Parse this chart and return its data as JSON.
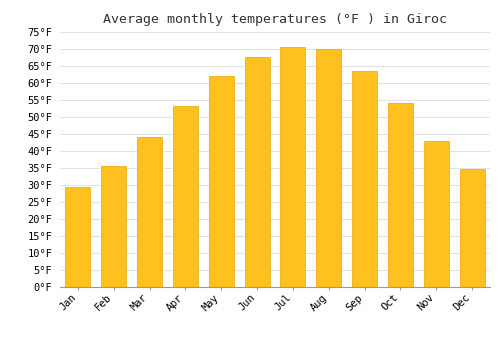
{
  "title": "Average monthly temperatures (°F ) in Giroc",
  "months": [
    "Jan",
    "Feb",
    "Mar",
    "Apr",
    "May",
    "Jun",
    "Jul",
    "Aug",
    "Sep",
    "Oct",
    "Nov",
    "Dec"
  ],
  "values": [
    29.5,
    35.5,
    44,
    53,
    62,
    67.5,
    70.5,
    70,
    63.5,
    54,
    43,
    34.5
  ],
  "bar_color": "#FFC020",
  "bar_edge_color": "#E8A800",
  "background_color": "#FFFFFF",
  "grid_color": "#DDDDDD",
  "ylim": [
    0,
    75
  ],
  "ytick_step": 5,
  "title_fontsize": 9.5,
  "tick_fontsize": 7.5,
  "font_family": "monospace"
}
